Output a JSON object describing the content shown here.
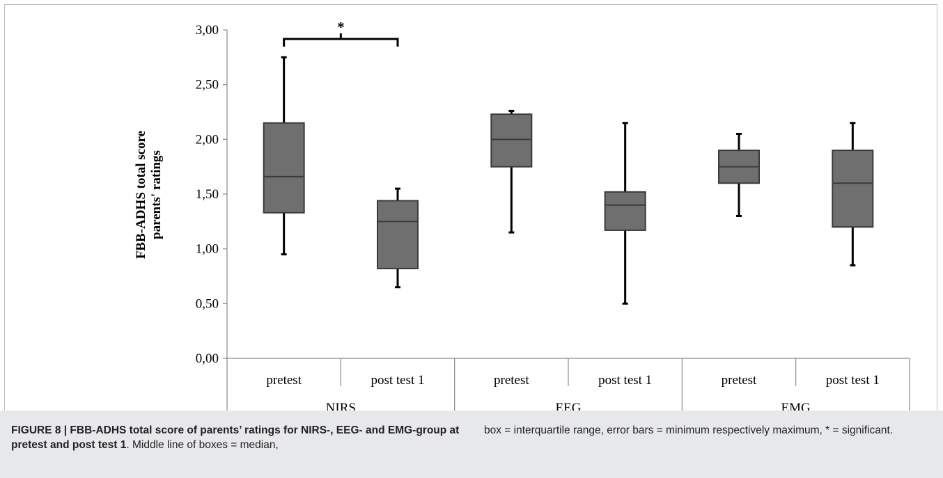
{
  "chart_data": {
    "type": "box",
    "ylabel_line1": "FBB-ADHS total score",
    "ylabel_line2": "parents' ratings",
    "ylim": [
      0,
      3
    ],
    "yticks": [
      "0,00",
      "0,50",
      "1,00",
      "1,50",
      "2,00",
      "2,50",
      "3,00"
    ],
    "groups": [
      {
        "name": "NIRS",
        "conditions": [
          "pretest",
          "post test 1"
        ]
      },
      {
        "name": "EEG",
        "conditions": [
          "pretest",
          "post test 1"
        ]
      },
      {
        "name": "EMG",
        "conditions": [
          "pretest",
          "post test 1"
        ]
      }
    ],
    "boxes": [
      {
        "group": "NIRS",
        "condition": "pretest",
        "min": 0.95,
        "q1": 1.33,
        "median": 1.66,
        "q3": 2.15,
        "max": 2.75
      },
      {
        "group": "NIRS",
        "condition": "post test 1",
        "min": 0.65,
        "q1": 0.82,
        "median": 1.25,
        "q3": 1.44,
        "max": 1.55
      },
      {
        "group": "EEG",
        "condition": "pretest",
        "min": 1.15,
        "q1": 1.75,
        "median": 2.0,
        "q3": 2.23,
        "max": 2.26
      },
      {
        "group": "EEG",
        "condition": "post test 1",
        "min": 0.5,
        "q1": 1.17,
        "median": 1.4,
        "q3": 1.52,
        "max": 2.15
      },
      {
        "group": "EMG",
        "condition": "pretest",
        "min": 1.3,
        "q1": 1.6,
        "median": 1.75,
        "q3": 1.9,
        "max": 2.05
      },
      {
        "group": "EMG",
        "condition": "post test 1",
        "min": 0.85,
        "q1": 1.2,
        "median": 1.6,
        "q3": 1.9,
        "max": 2.15
      }
    ],
    "significance": {
      "between": [
        "NIRS pretest",
        "NIRS post test 1"
      ],
      "label": "*"
    },
    "box_color": "#6f6f6f",
    "outline_color": "#3a3a3a"
  },
  "caption": {
    "title": "FIGURE 8 | FBB-ADHS total score of parents’ ratings for NIRS-, EEG- and EMG-group at pretest and post test 1",
    "text_left": ". Middle line of boxes = median,",
    "text_right": "box = interquartile range, error bars = minimum respectively maximum, * = significant."
  }
}
